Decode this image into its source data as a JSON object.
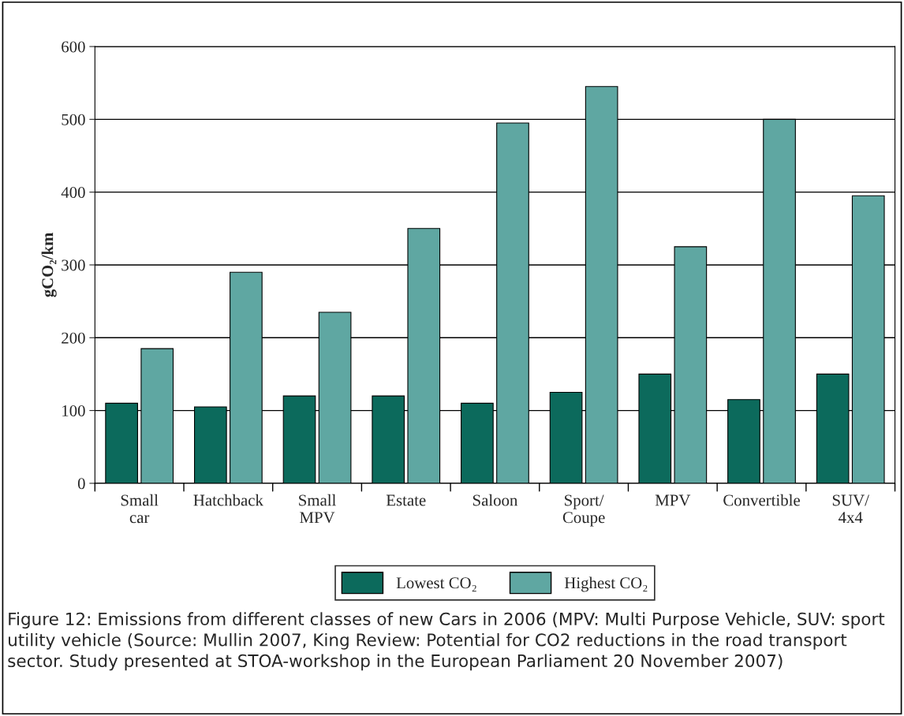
{
  "chart_data": {
    "type": "bar",
    "categories": [
      "Small\ncar",
      "Hatchback",
      "Small\nMPV",
      "Estate",
      "Saloon",
      "Sport/\nCoupe",
      "MPV",
      "Convertible",
      "SUV/\n4x4"
    ],
    "series": [
      {
        "name": "Lowest CO₂",
        "color": "#0c6a5c",
        "values": [
          110,
          105,
          120,
          120,
          110,
          125,
          150,
          115,
          150
        ]
      },
      {
        "name": "Highest CO₂",
        "color": "#5fa7a2",
        "values": [
          185,
          290,
          235,
          350,
          495,
          545,
          325,
          500,
          395
        ]
      }
    ],
    "ylabel": "gCO₂/km",
    "ylim": [
      0,
      600
    ],
    "yticks": [
      0,
      100,
      200,
      300,
      400,
      500,
      600
    ],
    "grid": "y",
    "legend": "bottom",
    "annotations": [
      "Figure 12: Emissions from different classes of new Cars in 2006 (MPV: Multi Purpose Vehicle, SUV: sport utility vehicle (Source: Mullin 2007, King Review: Potential for CO2 reductions in the road transport sector. Study presented at STOA-workshop in the European Parliament 20 November 2007)"
    ]
  }
}
